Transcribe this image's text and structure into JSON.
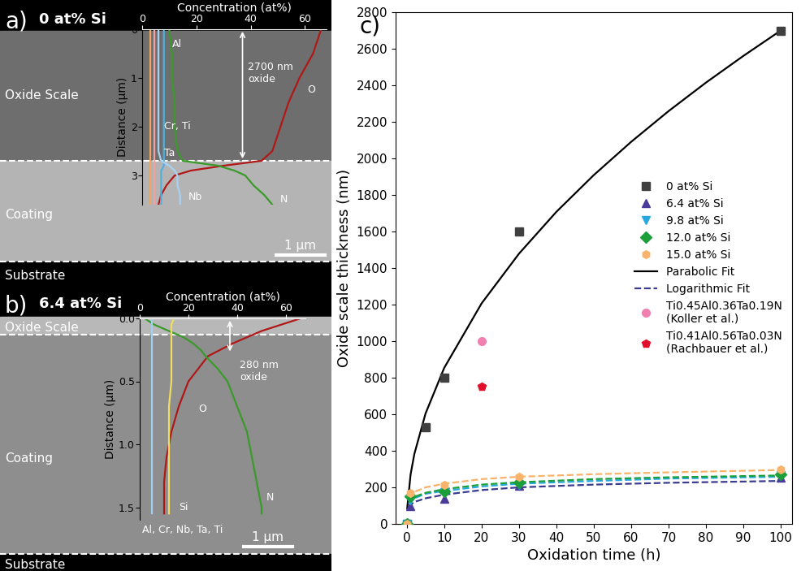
{
  "chart_data": [
    {
      "type": "line",
      "panel": "a)",
      "title": "0 at% Si",
      "image_labels": {
        "oxide": "Oxide Scale",
        "coating": "Coating",
        "substrate": "Substrate"
      },
      "scale_bar": "1 µm",
      "x_label": "Concentration (at%)",
      "y_label": "Distance (µm)",
      "xlim": [
        0,
        68
      ],
      "xticks": [
        0,
        20,
        40,
        60
      ],
      "ylim": [
        3.6,
        0
      ],
      "yticks": [
        0,
        1,
        2,
        3
      ],
      "series": [
        {
          "name": "O",
          "color": "#b01818",
          "x": [
            66,
            63,
            58,
            54,
            51,
            48,
            44,
            30,
            18,
            12,
            9,
            7,
            6
          ],
          "y": [
            0,
            0.5,
            1.0,
            1.5,
            2.0,
            2.5,
            2.7,
            2.8,
            2.9,
            3.0,
            3.2,
            3.4,
            3.6
          ]
        },
        {
          "name": "N",
          "color": "#3a9a2a",
          "x": [
            10,
            11,
            11,
            12,
            12,
            13,
            15,
            28,
            34,
            38,
            41,
            45,
            48
          ],
          "y": [
            0,
            0.5,
            1.0,
            1.5,
            2.0,
            2.5,
            2.7,
            2.8,
            2.9,
            3.0,
            3.2,
            3.4,
            3.6
          ]
        },
        {
          "name": "Al",
          "color": "#4fb0e0",
          "x": [
            8,
            8,
            8,
            8,
            8,
            8,
            8,
            8,
            7,
            7,
            7,
            7,
            7
          ],
          "y": [
            0,
            0.5,
            1.0,
            1.5,
            2.0,
            2.5,
            2.7,
            2.8,
            2.9,
            3.0,
            3.2,
            3.4,
            3.6
          ]
        },
        {
          "name": "Nb",
          "color": "#a8d0f0",
          "x": [
            6,
            6,
            6,
            6,
            6,
            6,
            7,
            10,
            12,
            13,
            13,
            14,
            14
          ],
          "y": [
            0,
            0.5,
            1.0,
            1.5,
            2.0,
            2.5,
            2.7,
            2.8,
            2.9,
            3.0,
            3.2,
            3.4,
            3.6
          ]
        },
        {
          "name": "Cr, Ti",
          "color": "#f2a0a0",
          "x": [
            4.5,
            4.5,
            4.5,
            4.5,
            4.5,
            4.5,
            4.5,
            4.5,
            4.5,
            4.5,
            4.5,
            4.5,
            4.5
          ],
          "y": [
            0,
            0.5,
            1.0,
            1.5,
            2.0,
            2.5,
            2.7,
            2.8,
            2.9,
            3.0,
            3.2,
            3.4,
            3.6
          ]
        },
        {
          "name": "Ta",
          "color": "#f4a460",
          "x": [
            3,
            3,
            3,
            3,
            3,
            3,
            3,
            3,
            3,
            3,
            3,
            3,
            3
          ],
          "y": [
            0,
            0.5,
            1.0,
            1.5,
            2.0,
            2.5,
            2.7,
            2.8,
            2.9,
            3.0,
            3.2,
            3.4,
            3.6
          ]
        }
      ],
      "annotations": [
        {
          "text": "2700 nm\noxide",
          "x": 37,
          "y": [
            0,
            2.7
          ]
        }
      ]
    },
    {
      "type": "line",
      "panel": "b)",
      "title": "6.4 at% Si",
      "image_labels": {
        "oxide": "Oxide Scale",
        "coating": "Coating",
        "substrate": "Substrate"
      },
      "scale_bar": "1 µm",
      "x_label": "Concentration (at%)",
      "y_label": "Distance (µm)",
      "xlim": [
        0,
        68
      ],
      "xticks": [
        0,
        20,
        40,
        60
      ],
      "ylim": [
        1.6,
        0
      ],
      "yticks": [
        {
          "value": 0,
          "label": "0.0"
        },
        0.5,
        {
          "value": 1,
          "label": "1.0"
        },
        1.5
      ],
      "series": [
        {
          "name": "O",
          "color": "#b01818",
          "x": [
            66,
            58,
            50,
            44,
            38,
            33,
            28,
            24,
            20,
            16,
            13,
            11,
            10,
            10,
            10
          ],
          "y": [
            0,
            0.05,
            0.1,
            0.15,
            0.2,
            0.25,
            0.3,
            0.4,
            0.5,
            0.7,
            0.9,
            1.1,
            1.3,
            1.5,
            1.55
          ]
        },
        {
          "name": "N",
          "color": "#3a9a2a",
          "x": [
            2,
            6,
            12,
            18,
            22,
            25,
            27,
            32,
            36,
            40,
            44,
            46,
            48,
            50,
            50
          ],
          "y": [
            0,
            0.05,
            0.1,
            0.15,
            0.2,
            0.25,
            0.3,
            0.4,
            0.5,
            0.7,
            0.9,
            1.1,
            1.3,
            1.5,
            1.55
          ]
        },
        {
          "name": "Si",
          "color": "#f0dc60",
          "x": [
            14,
            13,
            13,
            13,
            13,
            13,
            13,
            13,
            13,
            12,
            12,
            12,
            12,
            12,
            12
          ],
          "y": [
            0,
            0.05,
            0.1,
            0.15,
            0.2,
            0.25,
            0.3,
            0.4,
            0.5,
            0.7,
            0.9,
            1.1,
            1.3,
            1.5,
            1.55
          ]
        },
        {
          "name": "Al, Cr, Nb, Ta, Ti",
          "color": "#9fd0f0",
          "x": [
            5,
            5,
            5,
            5,
            5,
            5,
            5,
            5,
            5,
            5,
            5,
            5,
            5,
            5,
            5
          ],
          "y": [
            0,
            0.05,
            0.1,
            0.15,
            0.2,
            0.25,
            0.3,
            0.4,
            0.5,
            0.7,
            0.9,
            1.1,
            1.3,
            1.5,
            1.55
          ]
        }
      ],
      "annotations": [
        {
          "text": "280 nm\noxide",
          "x": 37,
          "y": [
            0,
            0.28
          ]
        }
      ]
    },
    {
      "type": "scatter",
      "panel": "c)",
      "x_label": "Oxidation time (h)",
      "y_label": "Oxide scale thickness (nm)",
      "xlim": [
        -3,
        103
      ],
      "xticks": [
        0,
        10,
        20,
        30,
        40,
        50,
        60,
        70,
        80,
        90,
        100
      ],
      "ylim": [
        0,
        2800
      ],
      "yticks": [
        0,
        200,
        400,
        600,
        800,
        1000,
        1200,
        1400,
        1600,
        1800,
        2000,
        2200,
        2400,
        2600,
        2800
      ],
      "legend": "center right",
      "series": [
        {
          "name": "0 at% Si",
          "color": "#404040",
          "marker": "square",
          "x": [
            0,
            5,
            10,
            30,
            100
          ],
          "values": [
            0,
            530,
            800,
            1600,
            2700
          ]
        },
        {
          "name": "6.4 at% Si",
          "color": "#4b3b9a",
          "marker": "triangle_up",
          "x": [
            0,
            1,
            10,
            30,
            100
          ],
          "values": [
            0,
            100,
            140,
            210,
            255
          ]
        },
        {
          "name": "9.8 at% Si",
          "color": "#29a8e0",
          "marker": "triangle_down",
          "x": [
            0,
            1,
            10,
            30,
            100
          ],
          "values": [
            0,
            130,
            175,
            215,
            265
          ]
        },
        {
          "name": "12.0 at% Si",
          "color": "#1a9f3a",
          "marker": "diamond",
          "x": [
            0,
            1,
            10,
            30,
            100
          ],
          "values": [
            0,
            150,
            180,
            225,
            270
          ]
        },
        {
          "name": "15.0 at% Si",
          "color": "#f9b36b",
          "marker": "hexagon",
          "x": [
            0,
            1,
            10,
            30,
            100
          ],
          "values": [
            0,
            170,
            215,
            260,
            300
          ]
        },
        {
          "name": "Parabolic Fit",
          "type": "line",
          "color": "#000000",
          "line_style": "solid",
          "x": [
            0.1,
            1,
            2,
            5,
            10,
            20,
            30,
            40,
            50,
            60,
            70,
            80,
            90,
            100
          ],
          "values": [
            85,
            270,
            382,
            604,
            854,
            1207,
            1479,
            1708,
            1909,
            2091,
            2259,
            2415,
            2561,
            2700
          ]
        },
        {
          "name": "Logarithmic Fit",
          "type": "line",
          "color": "#3b3b8f",
          "line_style": "dashed",
          "curves": [
            {
              "color": "#3b3b8f",
              "x": [
                0.5,
                1,
                2,
                5,
                10,
                20,
                30,
                50,
                70,
                100
              ],
              "values": [
                90,
                105,
                120,
                140,
                160,
                185,
                200,
                215,
                225,
                235
              ]
            },
            {
              "color": "#29a8e0",
              "x": [
                0.5,
                1,
                2,
                5,
                10,
                20,
                30,
                50,
                70,
                100
              ],
              "values": [
                110,
                125,
                140,
                165,
                180,
                205,
                220,
                235,
                248,
                258
              ]
            },
            {
              "color": "#1a9f3a",
              "x": [
                0.5,
                1,
                2,
                5,
                10,
                20,
                30,
                50,
                70,
                100
              ],
              "values": [
                115,
                130,
                148,
                170,
                190,
                215,
                228,
                245,
                255,
                265
              ]
            },
            {
              "color": "#f9b36b",
              "x": [
                0.5,
                1,
                2,
                5,
                10,
                20,
                30,
                50,
                70,
                100
              ],
              "values": [
                140,
                155,
                175,
                200,
                220,
                245,
                258,
                272,
                282,
                295
              ]
            }
          ]
        },
        {
          "name": "Ti0.45Al0.36Ta0.19N\n(Koller et al.)",
          "color": "#f080b0",
          "marker": "circle",
          "x": [
            20
          ],
          "values": [
            1000
          ]
        },
        {
          "name": "Ti0.41Al0.56Ta0.03N\n(Rachbauer et al.)",
          "color": "#e0102a",
          "marker": "pentagon",
          "x": [
            20
          ],
          "values": [
            750
          ]
        }
      ]
    }
  ]
}
